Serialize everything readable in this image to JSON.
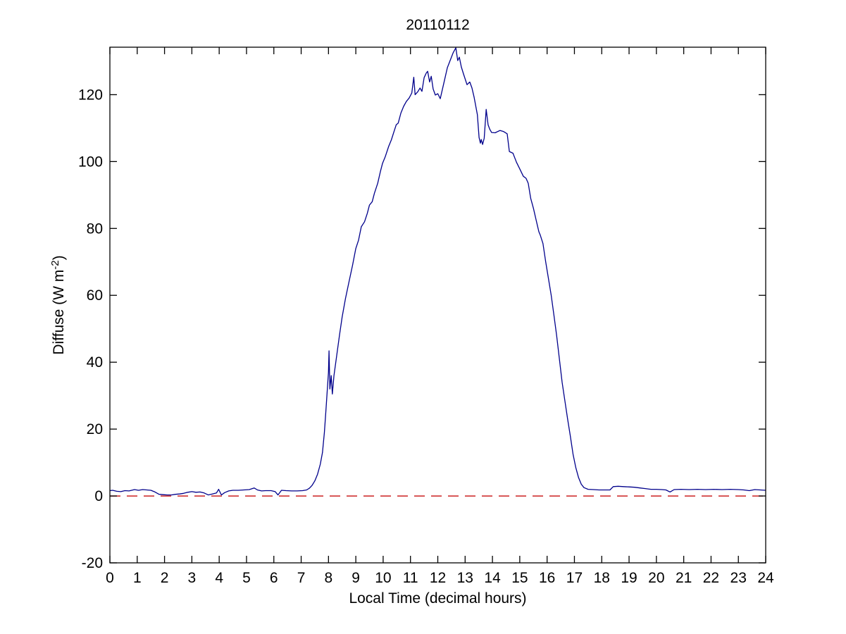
{
  "figure": {
    "background": "#FFFFFF",
    "axis_color": "#000000"
  },
  "chart_data": {
    "type": "line",
    "title": "20110112",
    "xlabel": "Local Time (decimal hours)",
    "ylabel": "Diffuse (W m⁻²)",
    "ylabel_parts": {
      "main": "Diffuse (W m",
      "sup": "-2",
      "close": ")"
    },
    "xlim": [
      0,
      24
    ],
    "ylim": [
      -20,
      134.2
    ],
    "xticks": [
      0,
      1,
      2,
      3,
      4,
      5,
      6,
      7,
      8,
      9,
      10,
      11,
      12,
      13,
      14,
      15,
      16,
      17,
      18,
      19,
      20,
      21,
      22,
      23,
      24
    ],
    "yticks": [
      -20,
      0,
      20,
      40,
      60,
      80,
      100,
      120
    ],
    "grid": false,
    "legend": "none",
    "series": [
      {
        "name": "diffuse-irradiance",
        "color": "#00008B",
        "style": "solid",
        "width": 1.3,
        "points": [
          [
            0,
            1.6
          ],
          [
            0.1,
            1.7
          ],
          [
            0.25,
            1.4
          ],
          [
            0.4,
            1.3
          ],
          [
            0.55,
            1.6
          ],
          [
            0.7,
            1.5
          ],
          [
            0.9,
            1.9
          ],
          [
            1.05,
            1.7
          ],
          [
            1.2,
            1.9
          ],
          [
            1.35,
            1.8
          ],
          [
            1.5,
            1.7
          ],
          [
            1.65,
            1.2
          ],
          [
            1.8,
            0.5
          ],
          [
            1.95,
            0.4
          ],
          [
            2.1,
            0.3
          ],
          [
            2.25,
            0.3
          ],
          [
            2.4,
            0.5
          ],
          [
            2.55,
            0.6
          ],
          [
            2.7,
            0.8
          ],
          [
            2.85,
            1.1
          ],
          [
            3,
            1.3
          ],
          [
            3.15,
            1.1
          ],
          [
            3.3,
            1.2
          ],
          [
            3.45,
            0.9
          ],
          [
            3.6,
            0.3
          ],
          [
            3.75,
            0.6
          ],
          [
            3.9,
            0.9
          ],
          [
            3.98,
            2
          ],
          [
            4.08,
            0.3
          ],
          [
            4.2,
            1
          ],
          [
            4.35,
            1.5
          ],
          [
            4.5,
            1.7
          ],
          [
            4.7,
            1.7
          ],
          [
            4.9,
            1.8
          ],
          [
            5.1,
            1.9
          ],
          [
            5.28,
            2.4
          ],
          [
            5.4,
            1.8
          ],
          [
            5.55,
            1.5
          ],
          [
            5.7,
            1.6
          ],
          [
            5.9,
            1.6
          ],
          [
            6.05,
            1.3
          ],
          [
            6.15,
            0.3
          ],
          [
            6.28,
            1.7
          ],
          [
            6.45,
            1.6
          ],
          [
            6.65,
            1.5
          ],
          [
            6.85,
            1.5
          ],
          [
            7.05,
            1.6
          ],
          [
            7.2,
            1.8
          ],
          [
            7.3,
            2.3
          ],
          [
            7.4,
            3.2
          ],
          [
            7.5,
            4.5
          ],
          [
            7.6,
            6.5
          ],
          [
            7.7,
            9.5
          ],
          [
            7.78,
            13
          ],
          [
            7.85,
            19
          ],
          [
            7.9,
            25
          ],
          [
            7.95,
            31
          ],
          [
            8,
            37
          ],
          [
            8.02,
            43.4
          ],
          [
            8.05,
            32
          ],
          [
            8.1,
            36
          ],
          [
            8.14,
            30.5
          ],
          [
            8.2,
            36
          ],
          [
            8.3,
            42
          ],
          [
            8.4,
            48
          ],
          [
            8.5,
            53.5
          ],
          [
            8.62,
            59
          ],
          [
            8.75,
            64
          ],
          [
            8.88,
            69
          ],
          [
            9,
            74
          ],
          [
            9.1,
            76.5
          ],
          [
            9.2,
            80.5
          ],
          [
            9.32,
            82
          ],
          [
            9.42,
            84.5
          ],
          [
            9.5,
            87
          ],
          [
            9.6,
            88
          ],
          [
            9.68,
            90.5
          ],
          [
            9.8,
            93.5
          ],
          [
            9.9,
            97
          ],
          [
            9.98,
            99.5
          ],
          [
            10.08,
            101.5
          ],
          [
            10.2,
            104.5
          ],
          [
            10.3,
            106.5
          ],
          [
            10.4,
            109
          ],
          [
            10.48,
            111
          ],
          [
            10.55,
            111.5
          ],
          [
            10.65,
            114.5
          ],
          [
            10.75,
            116.5
          ],
          [
            10.85,
            118
          ],
          [
            10.95,
            119
          ],
          [
            11.05,
            120.5
          ],
          [
            11.12,
            125.2
          ],
          [
            11.17,
            120
          ],
          [
            11.27,
            120.9
          ],
          [
            11.35,
            122
          ],
          [
            11.42,
            121
          ],
          [
            11.5,
            125.1
          ],
          [
            11.58,
            126.5
          ],
          [
            11.63,
            127
          ],
          [
            11.7,
            123.8
          ],
          [
            11.76,
            125.5
          ],
          [
            11.83,
            121.7
          ],
          [
            11.91,
            119.9
          ],
          [
            12,
            120.3
          ],
          [
            12.09,
            118.8
          ],
          [
            12.22,
            123.4
          ],
          [
            12.35,
            128.1
          ],
          [
            12.48,
            130.8
          ],
          [
            12.56,
            132.5
          ],
          [
            12.66,
            134
          ],
          [
            12.73,
            130.2
          ],
          [
            12.79,
            131.2
          ],
          [
            12.86,
            128.3
          ],
          [
            12.94,
            126.2
          ],
          [
            13.07,
            123
          ],
          [
            13.17,
            123.8
          ],
          [
            13.25,
            122
          ],
          [
            13.33,
            119.2
          ],
          [
            13.45,
            114
          ],
          [
            13.51,
            107.2
          ],
          [
            13.56,
            105.5
          ],
          [
            13.59,
            106.6
          ],
          [
            13.64,
            105.1
          ],
          [
            13.7,
            107
          ],
          [
            13.77,
            115.6
          ],
          [
            13.84,
            111
          ],
          [
            13.9,
            109.7
          ],
          [
            13.97,
            108.7
          ],
          [
            14.1,
            108.6
          ],
          [
            14.2,
            109
          ],
          [
            14.28,
            109.3
          ],
          [
            14.4,
            109
          ],
          [
            14.54,
            108.3
          ],
          [
            14.62,
            103
          ],
          [
            14.75,
            102.5
          ],
          [
            14.88,
            99.8
          ],
          [
            15,
            97.8
          ],
          [
            15.13,
            95.6
          ],
          [
            15.23,
            95
          ],
          [
            15.31,
            93.5
          ],
          [
            15.4,
            89
          ],
          [
            15.5,
            86
          ],
          [
            15.6,
            82.5
          ],
          [
            15.7,
            79
          ],
          [
            15.75,
            78
          ],
          [
            15.85,
            75.5
          ],
          [
            15.95,
            70
          ],
          [
            16.05,
            65
          ],
          [
            16.15,
            60
          ],
          [
            16.25,
            54
          ],
          [
            16.35,
            48
          ],
          [
            16.45,
            41
          ],
          [
            16.55,
            34
          ],
          [
            16.65,
            28.5
          ],
          [
            16.75,
            23
          ],
          [
            16.85,
            18
          ],
          [
            16.95,
            12.5
          ],
          [
            17.05,
            8.5
          ],
          [
            17.15,
            5.5
          ],
          [
            17.25,
            3.5
          ],
          [
            17.35,
            2.5
          ],
          [
            17.5,
            2
          ],
          [
            17.7,
            1.9
          ],
          [
            17.9,
            1.8
          ],
          [
            18.1,
            1.8
          ],
          [
            18.3,
            1.8
          ],
          [
            18.42,
            2.8
          ],
          [
            18.6,
            2.9
          ],
          [
            18.8,
            2.8
          ],
          [
            19,
            2.7
          ],
          [
            19.2,
            2.6
          ],
          [
            19.4,
            2.4
          ],
          [
            19.6,
            2.2
          ],
          [
            19.8,
            2
          ],
          [
            20,
            2
          ],
          [
            20.2,
            1.9
          ],
          [
            20.35,
            1.8
          ],
          [
            20.5,
            1.2
          ],
          [
            20.65,
            1.9
          ],
          [
            20.9,
            2
          ],
          [
            21.2,
            1.9
          ],
          [
            21.5,
            2
          ],
          [
            21.8,
            1.9
          ],
          [
            22.1,
            2
          ],
          [
            22.4,
            1.9
          ],
          [
            22.7,
            2
          ],
          [
            23,
            1.9
          ],
          [
            23.2,
            1.8
          ],
          [
            23.4,
            1.6
          ],
          [
            23.6,
            1.9
          ],
          [
            23.8,
            1.8
          ],
          [
            24,
            1.7
          ]
        ]
      },
      {
        "name": "zero-reference-line",
        "color": "#CC2222",
        "style": "dashed",
        "width": 1.5,
        "points": [
          [
            0,
            0
          ],
          [
            24,
            0
          ]
        ]
      }
    ]
  }
}
